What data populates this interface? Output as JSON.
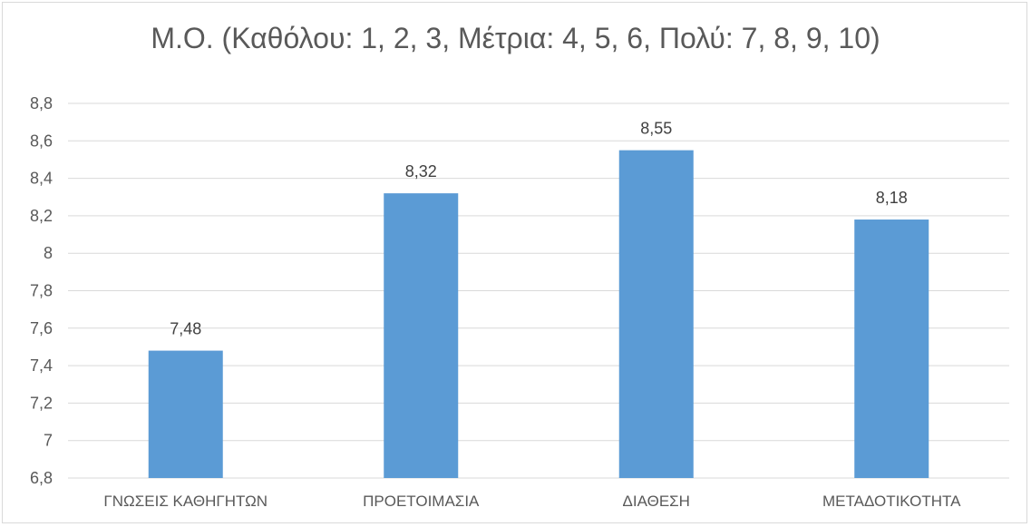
{
  "chart_data": {
    "type": "bar",
    "title": "Μ.Ο. (Καθόλου:  1, 2, 3, Μέτρια:  4, 5, 6, Πολύ: 7, 8, 9, 10)",
    "xlabel": "",
    "ylabel": "",
    "categories": [
      "ΓΝΩΣΕΙΣ ΚΑΘΗΓΗΤΩΝ",
      "ΠΡΟΕΤΟΙΜΑΣΙΑ",
      "ΔΙΑΘΕΣΗ",
      "ΜΕΤΑΔΟΤΙΚΟΤΗΤΑ"
    ],
    "values": [
      7.48,
      8.32,
      8.55,
      8.18
    ],
    "data_labels": [
      "7,48",
      "8,32",
      "8,55",
      "8,18"
    ],
    "ylim": [
      6.8,
      8.8
    ],
    "yticks": [
      6.8,
      7,
      7.2,
      7.4,
      7.6,
      7.8,
      8,
      8.2,
      8.4,
      8.6,
      8.8
    ],
    "ytick_labels": [
      "6,8",
      "7",
      "7,2",
      "7,4",
      "7,6",
      "7,8",
      "8",
      "8,2",
      "8,4",
      "8,6",
      "8,8"
    ],
    "grid": true,
    "legend": "none",
    "bar_color": "#5b9bd5",
    "grid_color": "#d9d9d9"
  }
}
